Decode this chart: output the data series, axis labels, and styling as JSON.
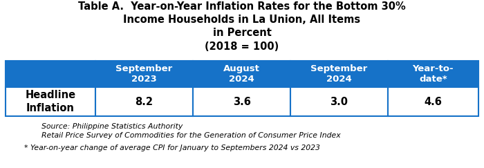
{
  "title_line1": "Table A.  Year-on-Year Inflation Rates for the Bottom 30%",
  "title_line2": "Income Households in La Union, All Items",
  "title_line3": "in Percent",
  "title_line4": "(2018 = 100)",
  "header_bg": "#1672C8",
  "header_text_color": "#ffffff",
  "header_cols": [
    "",
    "September\n2023",
    "August\n2024",
    "September\n2024",
    "Year-to-\ndate*"
  ],
  "row_label": "Headline\nInflation",
  "row_values": [
    "8.2",
    "3.6",
    "3.0",
    "4.6"
  ],
  "data_bg": "#ffffff",
  "data_text_color": "#000000",
  "border_color": "#1672C8",
  "source_line1": "Source: Philippine Statistics Authority",
  "source_line2": "        Retail Price Survey of Commodities for the Generation of Consumer Price Index",
  "footnote": "* Year-on-year change of average CPI for January to Septembers 2024 vs 2023",
  "title_fontsize": 10.5,
  "header_fontsize": 9.5,
  "data_fontsize": 10.5,
  "footnote_fontsize": 7.8
}
